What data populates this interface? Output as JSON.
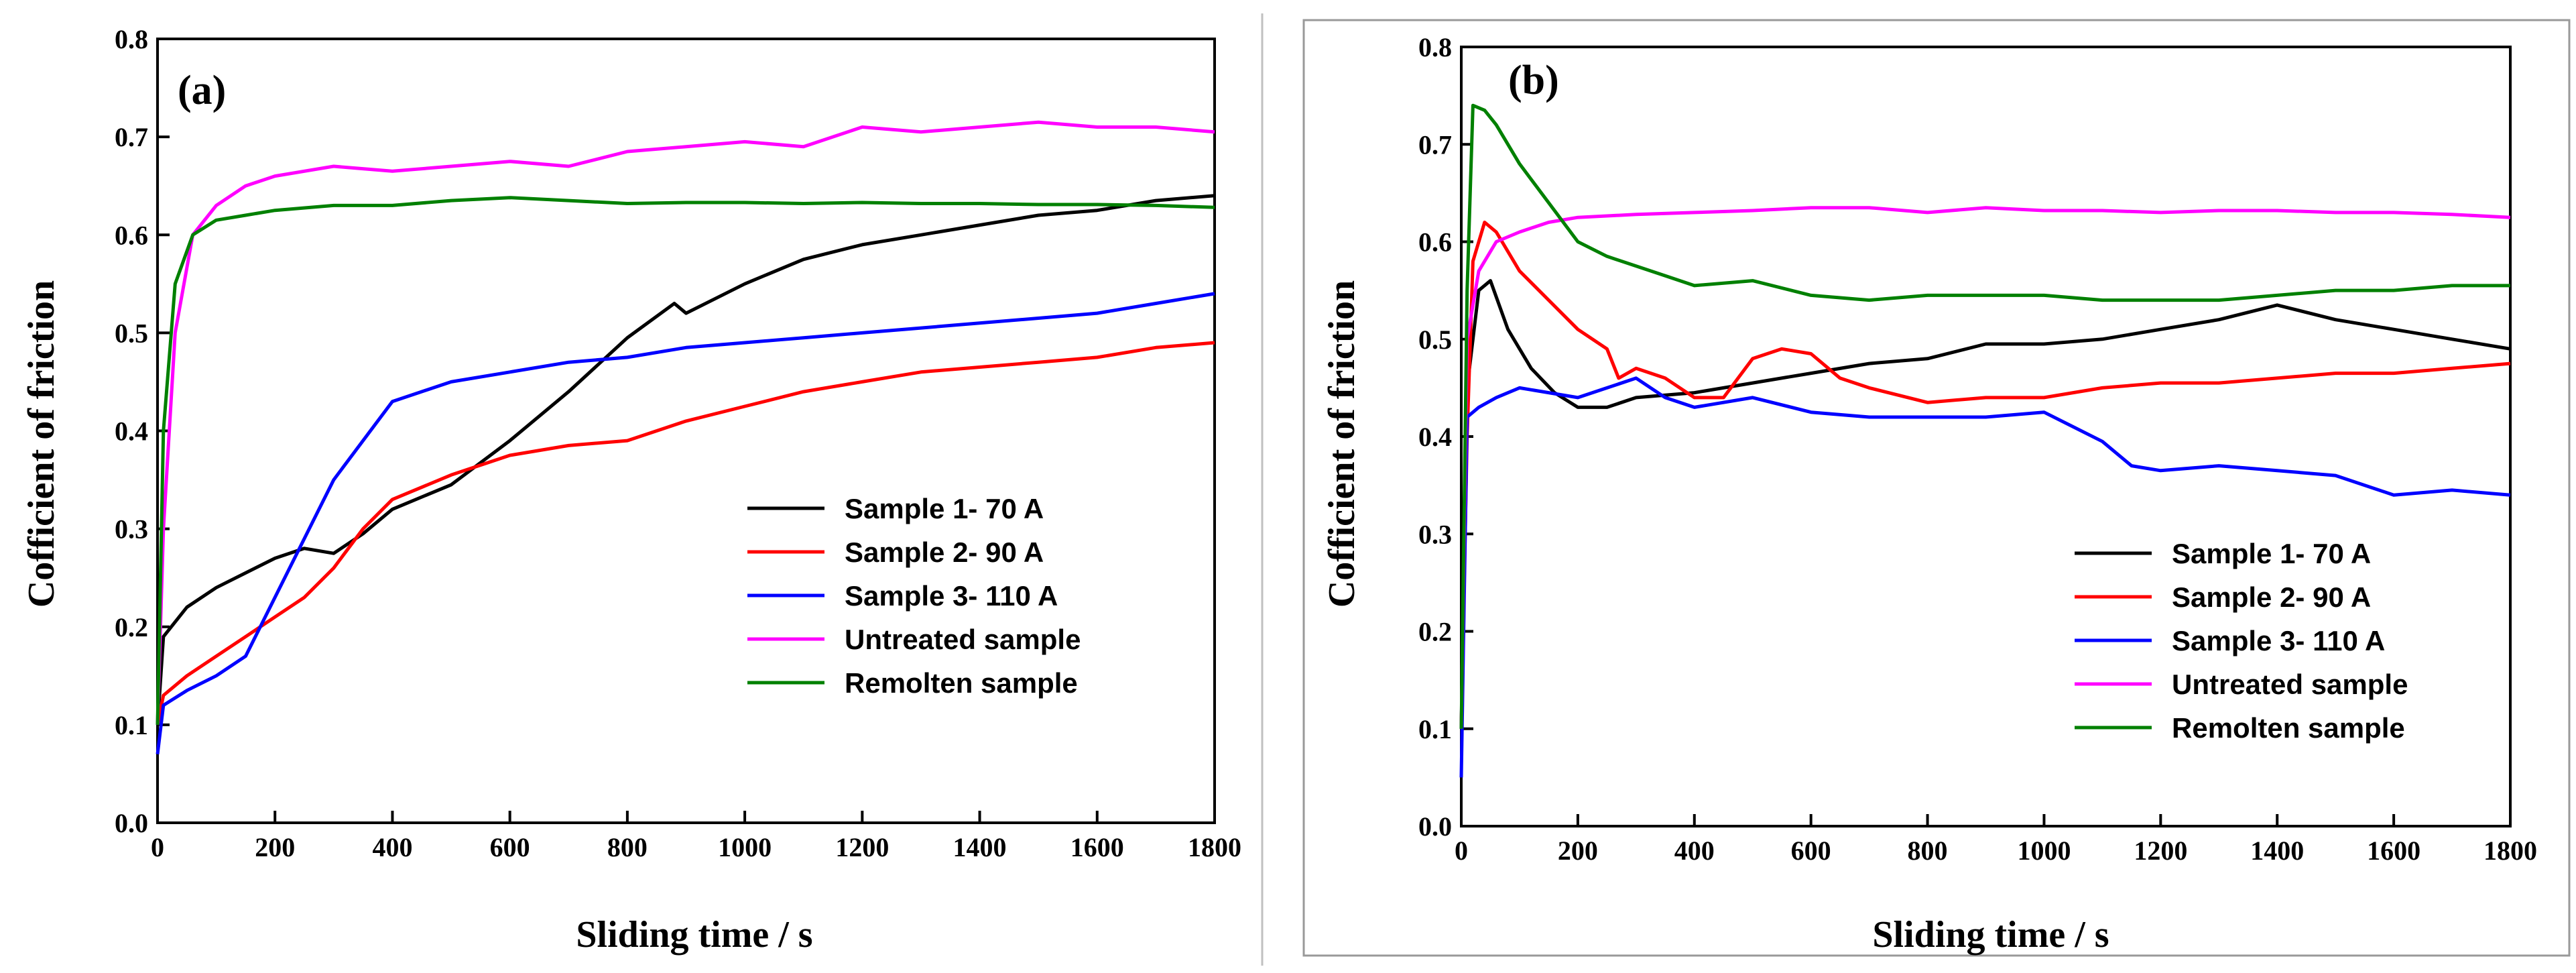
{
  "chart_data": [
    {
      "type": "line",
      "panel_label": "(a)",
      "xlabel": "Sliding time / s",
      "ylabel": "Cofficient of friction",
      "xlim": [
        0,
        1800
      ],
      "ylim": [
        0.0,
        0.8
      ],
      "xticks": [
        0,
        200,
        400,
        600,
        800,
        1000,
        1200,
        1400,
        1600,
        1800
      ],
      "yticks": [
        "0.0",
        "0.1",
        "0.2",
        "0.3",
        "0.4",
        "0.5",
        "0.6",
        "0.7",
        "0.8"
      ],
      "grid": false,
      "legend_position": "bottom-right",
      "series": [
        {
          "name": "Sample 1- 70 A",
          "color": "#000000",
          "x": [
            0,
            10,
            50,
            100,
            150,
            200,
            250,
            300,
            350,
            400,
            500,
            600,
            700,
            800,
            880,
            900,
            1000,
            1100,
            1200,
            1300,
            1400,
            1500,
            1600,
            1700,
            1800
          ],
          "y": [
            0.1,
            0.19,
            0.22,
            0.24,
            0.255,
            0.27,
            0.28,
            0.275,
            0.295,
            0.32,
            0.345,
            0.39,
            0.44,
            0.495,
            0.53,
            0.52,
            0.55,
            0.575,
            0.59,
            0.6,
            0.61,
            0.62,
            0.625,
            0.635,
            0.64
          ]
        },
        {
          "name": "Sample 2- 90 A",
          "color": "#ff0000",
          "x": [
            0,
            10,
            50,
            100,
            150,
            200,
            250,
            300,
            350,
            400,
            500,
            600,
            700,
            800,
            900,
            1000,
            1100,
            1200,
            1300,
            1400,
            1500,
            1600,
            1700,
            1800
          ],
          "y": [
            0.1,
            0.13,
            0.15,
            0.17,
            0.19,
            0.21,
            0.23,
            0.26,
            0.3,
            0.33,
            0.355,
            0.375,
            0.385,
            0.39,
            0.41,
            0.425,
            0.44,
            0.45,
            0.46,
            0.465,
            0.47,
            0.475,
            0.485,
            0.49
          ]
        },
        {
          "name": "Sample 3- 110 A",
          "color": "#0000ff",
          "x": [
            0,
            10,
            50,
            100,
            150,
            200,
            250,
            300,
            350,
            400,
            500,
            600,
            700,
            800,
            900,
            1000,
            1100,
            1200,
            1300,
            1400,
            1500,
            1600,
            1700,
            1800
          ],
          "y": [
            0.07,
            0.12,
            0.135,
            0.15,
            0.17,
            0.23,
            0.29,
            0.35,
            0.39,
            0.43,
            0.45,
            0.46,
            0.47,
            0.475,
            0.485,
            0.49,
            0.495,
            0.5,
            0.505,
            0.51,
            0.515,
            0.52,
            0.53,
            0.54
          ]
        },
        {
          "name": "Untreated sample",
          "color": "#ff00ff",
          "x": [
            0,
            10,
            30,
            60,
            100,
            150,
            200,
            300,
            400,
            500,
            600,
            700,
            800,
            900,
            1000,
            1100,
            1200,
            1300,
            1400,
            1500,
            1600,
            1700,
            1800
          ],
          "y": [
            0.1,
            0.3,
            0.5,
            0.6,
            0.63,
            0.65,
            0.66,
            0.67,
            0.665,
            0.67,
            0.675,
            0.67,
            0.685,
            0.69,
            0.695,
            0.69,
            0.71,
            0.705,
            0.71,
            0.715,
            0.71,
            0.71,
            0.705
          ]
        },
        {
          "name": "Remolten sample",
          "color": "#008000",
          "x": [
            0,
            10,
            30,
            60,
            100,
            150,
            200,
            300,
            400,
            500,
            600,
            700,
            800,
            900,
            1000,
            1100,
            1200,
            1300,
            1400,
            1500,
            1600,
            1700,
            1800
          ],
          "y": [
            0.1,
            0.4,
            0.55,
            0.6,
            0.615,
            0.62,
            0.625,
            0.63,
            0.63,
            0.635,
            0.638,
            0.635,
            0.632,
            0.633,
            0.633,
            0.632,
            0.633,
            0.632,
            0.632,
            0.631,
            0.631,
            0.63,
            0.628
          ]
        }
      ]
    },
    {
      "type": "line",
      "panel_label": "(b)",
      "xlabel": "Sliding time / s",
      "ylabel": "Cofficient of friction",
      "xlim": [
        0,
        1800
      ],
      "ylim": [
        0.0,
        0.8
      ],
      "xticks": [
        0,
        200,
        400,
        600,
        800,
        1000,
        1200,
        1400,
        1600,
        1800
      ],
      "yticks": [
        "0.0",
        "0.1",
        "0.2",
        "0.3",
        "0.4",
        "0.5",
        "0.6",
        "0.7",
        "0.8"
      ],
      "grid": false,
      "legend_position": "bottom-right",
      "series": [
        {
          "name": "Sample 1- 70 A",
          "color": "#000000",
          "x": [
            0,
            10,
            30,
            50,
            80,
            120,
            160,
            200,
            250,
            300,
            400,
            500,
            600,
            700,
            800,
            900,
            1000,
            1100,
            1200,
            1300,
            1400,
            1500,
            1600,
            1700,
            1800
          ],
          "y": [
            0.1,
            0.45,
            0.55,
            0.56,
            0.51,
            0.47,
            0.445,
            0.43,
            0.43,
            0.44,
            0.445,
            0.455,
            0.465,
            0.475,
            0.48,
            0.495,
            0.495,
            0.5,
            0.51,
            0.52,
            0.535,
            0.52,
            0.51,
            0.5,
            0.49
          ]
        },
        {
          "name": "Sample 2- 90 A",
          "color": "#ff0000",
          "x": [
            0,
            10,
            20,
            40,
            60,
            100,
            150,
            200,
            250,
            270,
            300,
            350,
            400,
            450,
            500,
            550,
            600,
            650,
            700,
            800,
            900,
            1000,
            1100,
            1200,
            1300,
            1400,
            1500,
            1600,
            1700,
            1800
          ],
          "y": [
            0.1,
            0.4,
            0.58,
            0.62,
            0.61,
            0.57,
            0.54,
            0.51,
            0.49,
            0.46,
            0.47,
            0.46,
            0.44,
            0.44,
            0.48,
            0.49,
            0.485,
            0.46,
            0.45,
            0.435,
            0.44,
            0.44,
            0.45,
            0.455,
            0.455,
            0.46,
            0.465,
            0.465,
            0.47,
            0.475
          ]
        },
        {
          "name": "Sample 3- 110 A",
          "color": "#0000ff",
          "x": [
            0,
            10,
            30,
            60,
            100,
            150,
            200,
            250,
            300,
            350,
            400,
            500,
            600,
            700,
            800,
            900,
            1000,
            1100,
            1150,
            1200,
            1300,
            1400,
            1500,
            1600,
            1700,
            1800
          ],
          "y": [
            0.05,
            0.42,
            0.43,
            0.44,
            0.45,
            0.445,
            0.44,
            0.45,
            0.46,
            0.44,
            0.43,
            0.44,
            0.425,
            0.42,
            0.42,
            0.42,
            0.425,
            0.395,
            0.37,
            0.365,
            0.37,
            0.365,
            0.36,
            0.34,
            0.345,
            0.34
          ]
        },
        {
          "name": "Untreated sample",
          "color": "#ff00ff",
          "x": [
            0,
            10,
            30,
            60,
            100,
            150,
            200,
            300,
            400,
            500,
            600,
            700,
            800,
            900,
            1000,
            1100,
            1200,
            1300,
            1400,
            1500,
            1600,
            1700,
            1800
          ],
          "y": [
            0.1,
            0.5,
            0.57,
            0.6,
            0.61,
            0.62,
            0.625,
            0.628,
            0.63,
            0.632,
            0.635,
            0.635,
            0.63,
            0.635,
            0.632,
            0.632,
            0.63,
            0.632,
            0.632,
            0.63,
            0.63,
            0.628,
            0.625
          ]
        },
        {
          "name": "Remolten sample",
          "color": "#008000",
          "x": [
            0,
            10,
            20,
            40,
            60,
            100,
            150,
            200,
            250,
            300,
            350,
            400,
            500,
            600,
            700,
            800,
            900,
            1000,
            1100,
            1200,
            1300,
            1400,
            1500,
            1600,
            1700,
            1800
          ],
          "y": [
            0.1,
            0.55,
            0.74,
            0.735,
            0.72,
            0.68,
            0.64,
            0.6,
            0.585,
            0.575,
            0.565,
            0.555,
            0.56,
            0.545,
            0.54,
            0.545,
            0.545,
            0.545,
            0.54,
            0.54,
            0.54,
            0.545,
            0.55,
            0.55,
            0.555,
            0.555
          ]
        }
      ]
    }
  ]
}
